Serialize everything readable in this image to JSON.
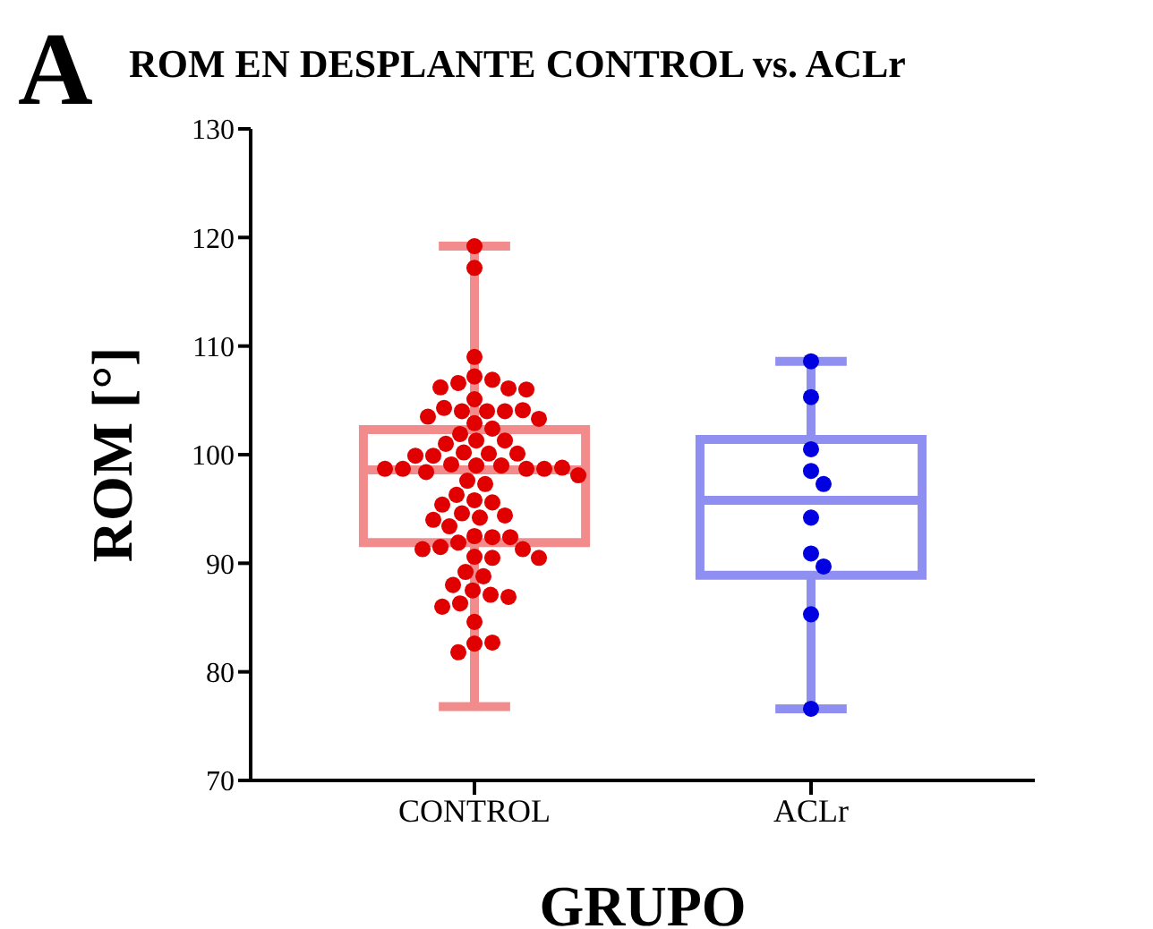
{
  "chart_data": {
    "type": "box",
    "title": "ROM EN DESPLANTE CONTROL vs. ACLr",
    "xlabel": "GRUPO",
    "ylabel": "ROM [°]",
    "annotations": [
      "A"
    ],
    "categories": [
      "CONTROL",
      "ACLr"
    ],
    "ylim": [
      70,
      130
    ],
    "yticks": [
      70,
      80,
      90,
      100,
      110,
      120,
      130
    ],
    "grid": false,
    "marker": "circle",
    "series": [
      {
        "colors": [
          "#f28c8c",
          "#8f8ff2"
        ],
        "boxes": [
          {
            "low": 76.8,
            "q1": 91.9,
            "median": 98.6,
            "q3": 102.3,
            "high": 119.2
          },
          {
            "low": 76.6,
            "q1": 88.9,
            "median": 95.8,
            "q3": 101.4,
            "high": 108.6
          }
        ]
      },
      {
        "type": "scatter",
        "color": "#e00000",
        "x": [
          "CONTROL",
          "CONTROL",
          "CONTROL",
          "CONTROL",
          "CONTROL",
          "CONTROL",
          "CONTROL",
          "CONTROL",
          "CONTROL",
          "CONTROL",
          "CONTROL",
          "CONTROL",
          "CONTROL",
          "CONTROL",
          "CONTROL",
          "CONTROL",
          "CONTROL",
          "CONTROL",
          "CONTROL",
          "CONTROL",
          "CONTROL",
          "CONTROL",
          "CONTROL",
          "CONTROL",
          "CONTROL",
          "CONTROL",
          "CONTROL",
          "CONTROL",
          "CONTROL",
          "CONTROL",
          "CONTROL",
          "CONTROL",
          "CONTROL",
          "CONTROL",
          "CONTROL",
          "CONTROL",
          "CONTROL",
          "CONTROL",
          "CONTROL",
          "CONTROL",
          "CONTROL",
          "CONTROL",
          "CONTROL",
          "CONTROL",
          "CONTROL",
          "CONTROL",
          "CONTROL",
          "CONTROL",
          "CONTROL",
          "CONTROL",
          "CONTROL",
          "CONTROL",
          "CONTROL",
          "CONTROL",
          "CONTROL",
          "CONTROL",
          "CONTROL",
          "CONTROL",
          "CONTROL",
          "CONTROL",
          "CONTROL",
          "CONTROL",
          "CONTROL",
          "CONTROL",
          "CONTROL",
          "CONTROL",
          "CONTROL",
          "CONTROL",
          "CONTROL",
          "CONTROL",
          "CONTROL"
        ],
        "values": [
          119.2,
          117.2,
          109.0,
          107.2,
          106.9,
          106.6,
          106.1,
          106.2,
          106.0,
          105.1,
          104.0,
          104.0,
          104.0,
          104.3,
          104.1,
          103.5,
          103.3,
          102.9,
          102.4,
          101.9,
          101.3,
          101.3,
          101.0,
          100.2,
          100.1,
          100.1,
          99.9,
          99.9,
          99.1,
          99.0,
          99.0,
          98.7,
          98.7,
          98.7,
          98.8,
          98.7,
          98.4,
          98.1,
          97.6,
          97.3,
          96.3,
          95.8,
          95.6,
          95.4,
          94.6,
          94.4,
          94.2,
          94.0,
          93.4,
          92.5,
          92.4,
          92.4,
          91.9,
          91.5,
          91.3,
          91.3,
          90.6,
          90.5,
          90.5,
          89.2,
          88.8,
          88.0,
          87.5,
          87.1,
          86.9,
          86.3,
          86.0,
          84.6,
          82.6,
          82.7,
          81.8
        ]
      },
      {
        "type": "scatter",
        "color": "#0000e0",
        "x": [
          "ACLr",
          "ACLr",
          "ACLr",
          "ACLr",
          "ACLr",
          "ACLr",
          "ACLr",
          "ACLr",
          "ACLr",
          "ACLr"
        ],
        "values": [
          108.6,
          105.3,
          100.5,
          98.5,
          97.3,
          94.2,
          90.9,
          89.7,
          85.3,
          76.6
        ]
      }
    ]
  }
}
